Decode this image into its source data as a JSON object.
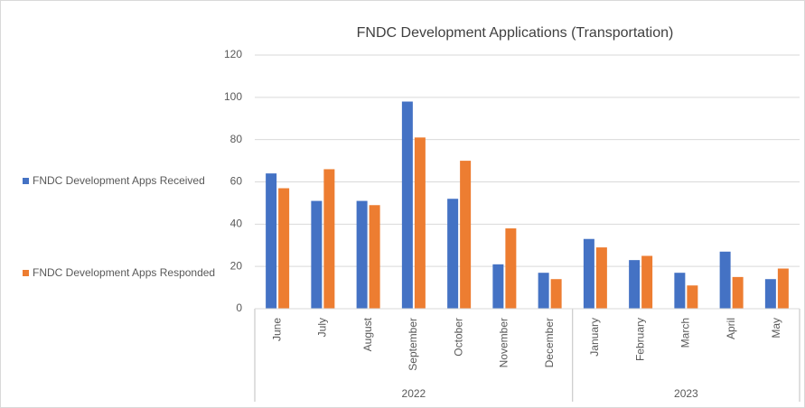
{
  "chart_data": {
    "type": "bar",
    "title": "FNDC Development Applications (Transportation)",
    "groups": [
      {
        "label": "2022",
        "categories": [
          "June",
          "July",
          "August",
          "September",
          "October",
          "November",
          "December"
        ]
      },
      {
        "label": "2023",
        "categories": [
          "January",
          "February",
          "March",
          "April",
          "May"
        ]
      }
    ],
    "series": [
      {
        "name": "FNDC Development Apps Received",
        "color": "#4472c4",
        "values": [
          64,
          51,
          51,
          98,
          52,
          21,
          17,
          33,
          23,
          17,
          27,
          14
        ]
      },
      {
        "name": "FNDC Development Apps Responded",
        "color": "#ed7d31",
        "values": [
          57,
          66,
          49,
          81,
          70,
          38,
          14,
          29,
          25,
          11,
          15,
          19
        ]
      }
    ],
    "ylim": [
      0,
      120
    ],
    "yticks": [
      0,
      20,
      40,
      60,
      80,
      100,
      120
    ],
    "grid": true,
    "legend": "left"
  }
}
